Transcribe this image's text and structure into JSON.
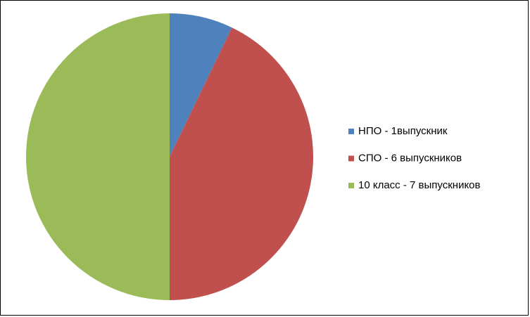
{
  "chart_data": {
    "type": "pie",
    "categories": [
      "НПО - 1выпускник",
      "СПО - 6 выпускников",
      "10 класс - 7 выпускников"
    ],
    "values": [
      1,
      6,
      7
    ],
    "colors": [
      "#4f81bd",
      "#c0504d",
      "#9bbb59"
    ],
    "legend": "right"
  }
}
